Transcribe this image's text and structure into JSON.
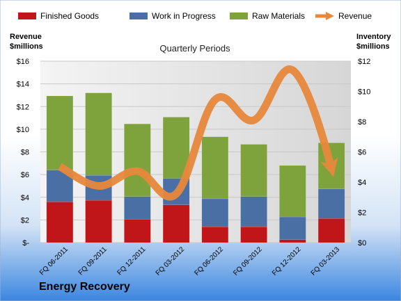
{
  "company": "Energy Recovery",
  "chart_data": {
    "type": "bar",
    "title": "Quarterly Periods",
    "categories": [
      "FQ 06-2011",
      "FQ 09-2011",
      "FQ 12-2011",
      "FQ 03-2012",
      "FQ 06-2012",
      "FQ 09-2012",
      "FQ 12-2012",
      "FQ 03-2013"
    ],
    "stacked": true,
    "left_axis": {
      "label_line1": "Revenue",
      "label_line2": "$millions",
      "min": 0,
      "max": 16,
      "step": 2,
      "ticks": [
        "$-",
        "$2",
        "$4",
        "$6",
        "$8",
        "$10",
        "$12",
        "$14",
        "$16"
      ]
    },
    "right_axis": {
      "label_line1": "Inventory",
      "label_line2": "$millions",
      "min": 0,
      "max": 12,
      "step": 2,
      "ticks": [
        "$0",
        "$2",
        "$4",
        "$6",
        "$8",
        "$10",
        "$12"
      ]
    },
    "series": [
      {
        "name": "Finished Goods",
        "color": "#C0161A",
        "axis": "right",
        "values": [
          2.7,
          2.8,
          1.55,
          2.5,
          1.05,
          1.05,
          0.2,
          1.6
        ]
      },
      {
        "name": "Work in Progress",
        "color": "#4A6FA5",
        "axis": "right",
        "values": [
          2.1,
          1.65,
          1.5,
          1.75,
          1.85,
          2.0,
          1.5,
          1.95
        ]
      },
      {
        "name": "Raw Materials",
        "color": "#7FA33C",
        "axis": "right",
        "values": [
          4.9,
          5.45,
          4.8,
          4.05,
          4.1,
          3.45,
          3.4,
          3.05
        ]
      },
      {
        "name": "Revenue",
        "color": "#E8883C",
        "axis": "left",
        "type": "line",
        "values": [
          6.7,
          5.0,
          6.3,
          4.3,
          12.6,
          10.8,
          15.2,
          6.5
        ]
      }
    ],
    "grid": true,
    "legend_position": "top"
  }
}
